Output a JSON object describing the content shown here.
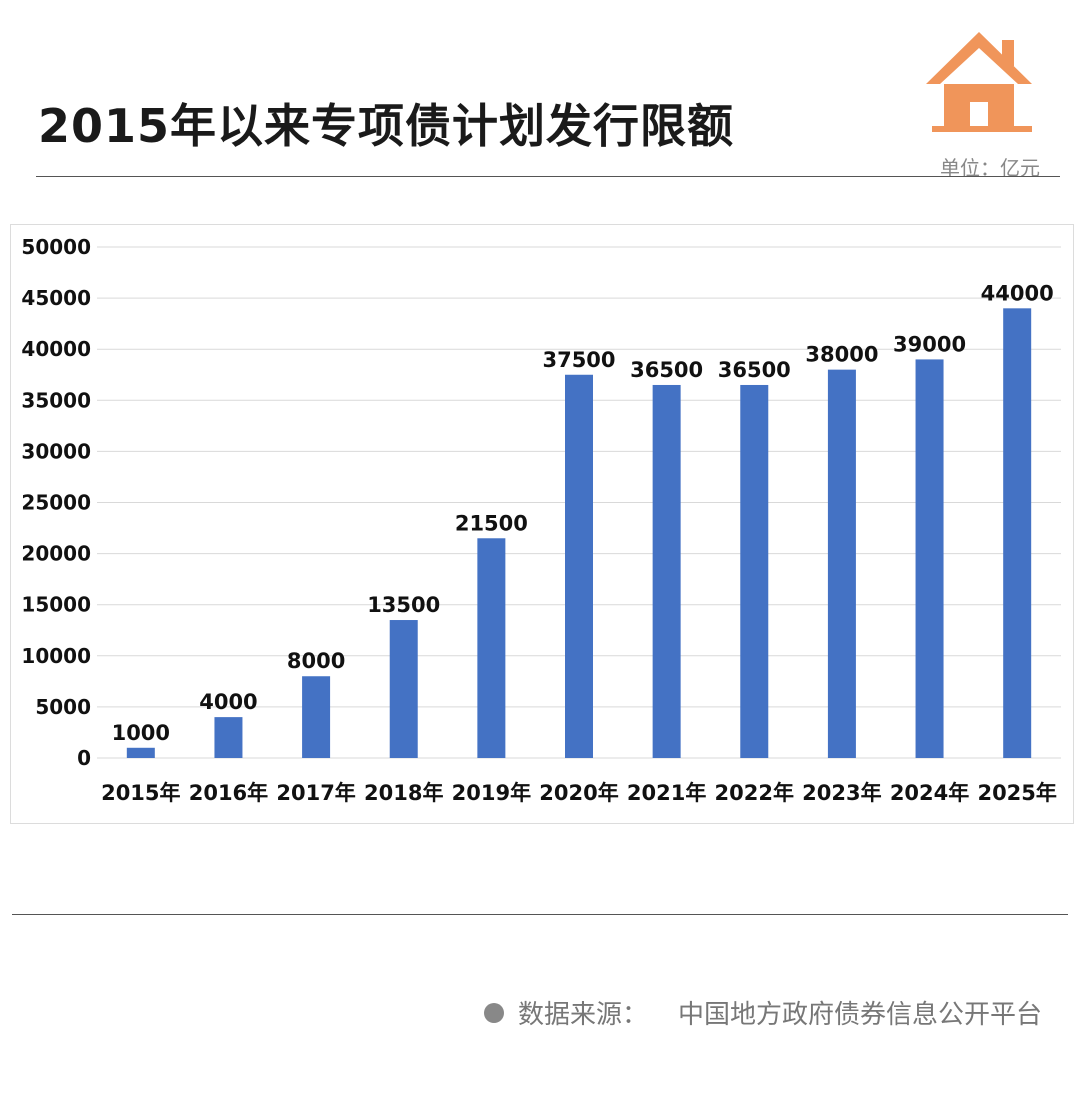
{
  "header": {
    "title": "2015年以来专项债计划发行限额",
    "unit": "单位：亿元"
  },
  "footer": {
    "source_label": "数据来源：",
    "source_value": "中国地方政府债券信息公开平台"
  },
  "icons": {
    "header_icon": "house-icon",
    "source_bullet": "bullet-dot-icon"
  },
  "colors": {
    "bar": "#4472C4",
    "house": "#F0955A"
  },
  "chart_data": {
    "type": "bar",
    "title": "",
    "xlabel": "",
    "ylabel": "",
    "categories": [
      "2015年",
      "2016年",
      "2017年",
      "2018年",
      "2019年",
      "2020年",
      "2021年",
      "2022年",
      "2023年",
      "2024年",
      "2025年"
    ],
    "series": [
      {
        "values": [
          1000,
          4000,
          8000,
          13500,
          21500,
          37500,
          36500,
          36500,
          38000,
          39000,
          44000
        ]
      }
    ],
    "data_labels": [
      "1000",
      "4000",
      "8000",
      "13500",
      "21500",
      "37500",
      "36500",
      "36500",
      "38000",
      "39000",
      "44000"
    ],
    "ylim": [
      0,
      50000
    ],
    "yticks": [
      0,
      5000,
      10000,
      15000,
      20000,
      25000,
      30000,
      35000,
      40000,
      45000,
      50000
    ],
    "grid": true,
    "legend": "none"
  }
}
